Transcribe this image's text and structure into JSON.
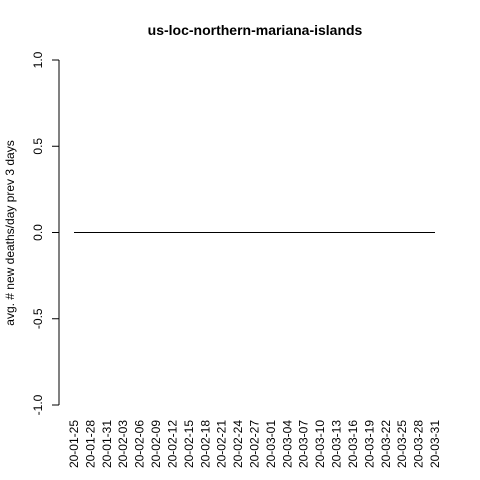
{
  "chart_data": {
    "type": "line",
    "title": "us-loc-northern-mariana-islands",
    "xlabel": "",
    "ylabel": "avg. # new deaths/day prev  3  days",
    "ylim": [
      -1.0,
      1.0
    ],
    "y_ticks": [
      "-1.0",
      "-0.5",
      "0.0",
      "0.5",
      "1.0"
    ],
    "x_tick_labels": [
      "20-01-25",
      "20-01-28",
      "20-01-31",
      "20-02-03",
      "20-02-06",
      "20-02-09",
      "20-02-12",
      "20-02-15",
      "20-02-18",
      "20-02-21",
      "20-02-24",
      "20-02-27",
      "20-03-01",
      "20-03-04",
      "20-03-07",
      "20-03-10",
      "20-03-13",
      "20-03-16",
      "20-03-19",
      "20-03-22",
      "20-03-25",
      "20-03-28",
      "20-03-31"
    ],
    "x_start": "2020-01-25",
    "x_end": "2020-03-31",
    "series": [
      {
        "x_start": "2020-01-25",
        "x_end": "2020-03-31",
        "values": "all days 0",
        "constant_value": 0
      }
    ],
    "grid": false,
    "line_color": "#000000"
  }
}
